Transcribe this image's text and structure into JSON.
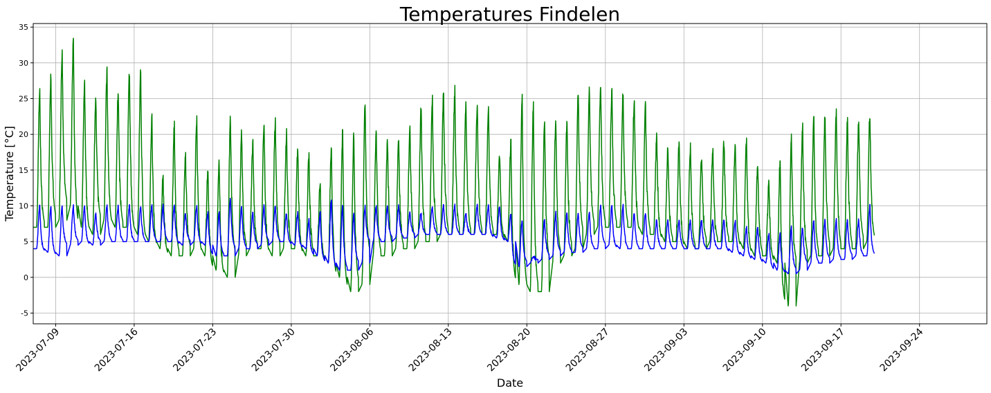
{
  "chart_data": {
    "type": "line",
    "title": "Temperatures Findelen",
    "xlabel": "Date",
    "ylabel": "Temperature [°C]",
    "xlim": [
      "2023-07-07",
      "2023-09-30"
    ],
    "ylim": [
      -6.5,
      35.5
    ],
    "grid": true,
    "yticks": [
      -5,
      0,
      5,
      10,
      15,
      20,
      25,
      30,
      35
    ],
    "xticks": [
      "2023-07-09",
      "2023-07-16",
      "2023-07-23",
      "2023-07-30",
      "2023-08-06",
      "2023-08-13",
      "2023-08-20",
      "2023-08-27",
      "2023-09-03",
      "2023-09-10",
      "2023-09-17",
      "2023-09-24"
    ],
    "start_date": "2023-07-07",
    "series": [
      {
        "name": "green series",
        "color": "#008000",
        "daily_max": [
          26,
          28,
          31,
          33,
          27,
          25,
          29,
          26,
          29,
          29,
          22,
          14,
          21,
          17,
          22,
          15,
          16,
          22,
          20,
          19,
          22,
          22,
          20,
          18,
          17,
          13,
          18,
          20,
          20,
          25,
          20,
          19,
          19,
          21,
          24,
          25,
          26,
          26,
          24,
          24,
          23,
          17,
          19,
          25,
          24,
          22,
          22,
          22,
          26,
          26,
          27,
          26,
          26,
          25,
          24,
          20,
          18,
          19,
          18,
          17,
          18,
          19,
          19,
          19,
          16,
          13,
          16,
          20,
          21,
          22,
          23,
          23,
          22,
          22,
          23
        ],
        "daily_min": [
          7,
          7,
          8,
          10,
          7,
          6,
          8,
          7,
          7,
          6,
          5,
          4,
          3,
          3,
          4,
          3,
          1,
          0,
          3,
          4,
          4,
          3,
          4,
          4,
          3,
          3,
          2,
          0,
          -2,
          -1,
          3,
          3,
          4,
          4,
          5,
          5,
          6,
          6,
          6,
          6,
          6,
          6,
          5,
          -1,
          -2,
          -2,
          2,
          3,
          4,
          6,
          7,
          7,
          7,
          7,
          6,
          6,
          5,
          5,
          4,
          4,
          5,
          5,
          5,
          4,
          3,
          3,
          2,
          -4,
          2,
          3,
          3,
          4,
          4,
          4,
          5
        ]
      },
      {
        "name": "blue series",
        "color": "#0000ff",
        "daily_max": [
          10,
          10,
          10,
          10,
          10,
          9,
          10,
          10,
          10,
          10,
          10,
          10,
          10,
          9,
          10,
          9,
          9,
          11,
          10,
          9,
          10,
          10,
          9,
          9,
          8,
          9,
          11,
          10,
          9,
          10,
          10,
          10,
          10,
          9,
          9,
          10,
          10,
          10,
          9,
          10,
          10,
          10,
          9,
          8,
          3,
          8,
          9,
          9,
          9,
          9,
          10,
          10,
          10,
          9,
          9,
          8,
          8,
          8,
          8,
          8,
          8,
          8,
          8,
          7,
          7,
          6,
          6,
          7,
          7,
          8,
          8,
          8,
          8,
          8,
          10
        ],
        "daily_min": [
          4,
          3.5,
          3,
          4.5,
          5,
          4.5,
          5,
          5,
          5,
          5,
          5,
          5,
          5,
          4.5,
          5,
          4.5,
          3,
          3,
          4,
          4,
          4.5,
          5,
          5,
          4.5,
          4,
          3,
          2,
          1,
          1,
          2,
          5,
          5,
          5.5,
          5.5,
          6,
          6,
          6,
          6,
          6,
          6,
          6,
          5.5,
          5,
          1.5,
          2,
          2.5,
          3,
          3.5,
          3.5,
          4,
          4,
          4.5,
          4,
          4,
          4,
          4,
          4,
          4,
          4,
          4,
          4,
          4,
          3.5,
          3,
          2.5,
          2,
          1,
          0.5,
          1,
          2,
          2,
          2.5,
          2.5,
          3,
          3
        ]
      }
    ]
  }
}
